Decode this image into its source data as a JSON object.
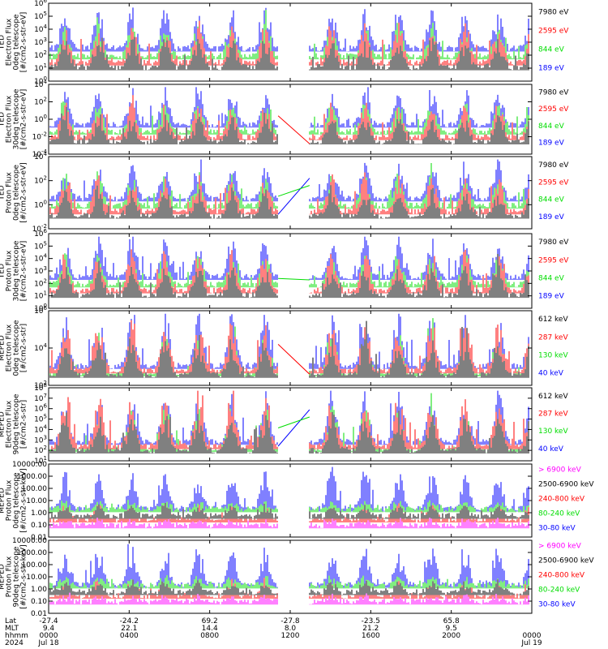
{
  "colors": {
    "black": "#000000",
    "red": "#ff0000",
    "green": "#00dd00",
    "blue": "#0000ff",
    "magenta": "#ff00ff"
  },
  "chart_data": [
    {
      "type": "line",
      "ylabel": [
        "TED",
        "Electron Flux",
        "0deg telescope",
        "[#/cm2-s-str-eV]"
      ],
      "log": true,
      "ylim_exp": [
        0,
        6
      ],
      "tick_labels": [
        "10^0",
        "10^1",
        "10^2",
        "10^3",
        "10^4",
        "10^5",
        "10^6"
      ],
      "legend": [
        {
          "label": "7980 eV",
          "color": "black"
        },
        {
          "label": "2595 eV",
          "color": "red"
        },
        {
          "label": "844 eV",
          "color": "green"
        },
        {
          "label": "189 eV",
          "color": "blue"
        }
      ]
    },
    {
      "type": "line",
      "ylabel": [
        "TED",
        "Electron Flux",
        "30deg telescope",
        "[#/cm2-s-str-eV]"
      ],
      "log": true,
      "ylim_exp": [
        -4,
        6
      ],
      "tick_labels": [
        "10^-4",
        "10^-2",
        "10^0",
        "10^2",
        "10^4"
      ],
      "legend": [
        {
          "label": "7980 eV",
          "color": "black"
        },
        {
          "label": "2595 eV",
          "color": "red"
        },
        {
          "label": "844 eV",
          "color": "green"
        },
        {
          "label": "189 eV",
          "color": "blue"
        }
      ]
    },
    {
      "type": "line",
      "ylabel": [
        "TED",
        "Proton Flux",
        "0deg telescope",
        "[#/cm2-s-str-eV]"
      ],
      "log": true,
      "ylim_exp": [
        -2,
        6
      ],
      "tick_labels": [
        "10^-2",
        "10^0",
        "10^2",
        "10^4"
      ],
      "legend": [
        {
          "label": "7980 eV",
          "color": "black"
        },
        {
          "label": "2595 eV",
          "color": "red"
        },
        {
          "label": "844 eV",
          "color": "green"
        },
        {
          "label": "189 eV",
          "color": "blue"
        }
      ]
    },
    {
      "type": "line",
      "ylabel": [
        "TED",
        "Proton Flux",
        "30deg telescope",
        "[#/cm2-s-str-eV]"
      ],
      "log": true,
      "ylim_exp": [
        0,
        6
      ],
      "tick_labels": [
        "10^0",
        "10^1",
        "10^2",
        "10^3",
        "10^4",
        "10^5",
        "10^6"
      ],
      "legend": [
        {
          "label": "7980 eV",
          "color": "black"
        },
        {
          "label": "2595 eV",
          "color": "red"
        },
        {
          "label": "844 eV",
          "color": "green"
        },
        {
          "label": "189 eV",
          "color": "blue"
        }
      ]
    },
    {
      "type": "line",
      "ylabel": [
        "MEPED",
        "Electron Flux",
        "0deg telescope",
        "[#/cm2-s-str]"
      ],
      "log": true,
      "ylim_exp": [
        1,
        8
      ],
      "tick_labels": [
        "10^2",
        "10^4",
        "10^6"
      ],
      "legend": [
        {
          "label": "612 keV",
          "color": "black"
        },
        {
          "label": "287 keV",
          "color": "red"
        },
        {
          "label": "130 keV",
          "color": "green"
        },
        {
          "label": "40 keV",
          "color": "blue"
        }
      ]
    },
    {
      "type": "line",
      "ylabel": [
        "MEPED",
        "Electron Flux",
        "90deg telescope",
        "[#/cm2-s-str]"
      ],
      "log": true,
      "ylim_exp": [
        1,
        8
      ],
      "tick_labels": [
        "10^1",
        "10^2",
        "10^3",
        "10^4",
        "10^5",
        "10^6",
        "10^7",
        "10^8"
      ],
      "legend": [
        {
          "label": "612 keV",
          "color": "black"
        },
        {
          "label": "287 keV",
          "color": "red"
        },
        {
          "label": "130 keV",
          "color": "green"
        },
        {
          "label": "40 keV",
          "color": "blue"
        }
      ]
    },
    {
      "type": "line",
      "ylabel": [
        "MEPED",
        "Proton Flux",
        "0deg telescope",
        "[#/cm2-s-str-keV]"
      ],
      "log": true,
      "ylim_exp": [
        -2,
        4
      ],
      "tick_labels": [
        "0.01",
        "0.10",
        "1.00",
        "10.00",
        "100.00",
        "1000.00",
        "10000.00"
      ],
      "legend": [
        {
          "label": "> 6900 keV",
          "color": "magenta"
        },
        {
          "label": "2500-6900 keV",
          "color": "black"
        },
        {
          "label": "240-800 keV",
          "color": "red"
        },
        {
          "label": "80-240 keV",
          "color": "green"
        },
        {
          "label": "30-80 keV",
          "color": "blue"
        }
      ]
    },
    {
      "type": "line",
      "ylabel": [
        "MEPED",
        "Proton Flux",
        "90deg telescope",
        "[#/cm2-s-str-keV]"
      ],
      "log": true,
      "ylim_exp": [
        -2,
        4
      ],
      "tick_labels": [
        "0.01",
        "0.10",
        "1.00",
        "10.00",
        "100.00",
        "1000.00",
        "10000.00"
      ],
      "legend": [
        {
          "label": "> 6900 keV",
          "color": "magenta"
        },
        {
          "label": "2500-6900 keV",
          "color": "black"
        },
        {
          "label": "240-800 keV",
          "color": "red"
        },
        {
          "label": "80-240 keV",
          "color": "green"
        },
        {
          "label": "30-80 keV",
          "color": "blue"
        }
      ]
    }
  ],
  "x_axis": {
    "row_labels": [
      "Lat",
      "MLT",
      "hhmm",
      "2024"
    ],
    "ticks": [
      {
        "lat": "-27.4",
        "mlt": "9.4",
        "hhmm": "0000",
        "date": "Jul 18"
      },
      {
        "lat": "-24.2",
        "mlt": "22.1",
        "hhmm": "0400",
        "date": ""
      },
      {
        "lat": "69.2",
        "mlt": "14.4",
        "hhmm": "0800",
        "date": ""
      },
      {
        "lat": "-27.8",
        "mlt": "8.0",
        "hhmm": "1200",
        "date": ""
      },
      {
        "lat": "-23.5",
        "mlt": "21.2",
        "hhmm": "1600",
        "date": ""
      },
      {
        "lat": "65.8",
        "mlt": "9.5",
        "hhmm": "2000",
        "date": ""
      },
      {
        "lat": "",
        "mlt": "",
        "hhmm": "0000",
        "date": "Jul 19"
      }
    ]
  }
}
